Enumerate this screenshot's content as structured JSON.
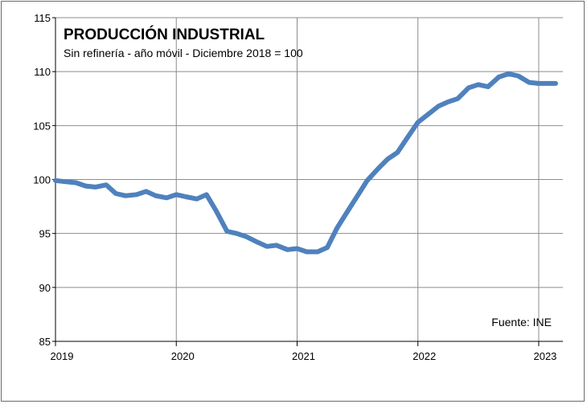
{
  "chart_data": {
    "type": "line",
    "title": "PRODUCCIÓN INDUSTRIAL",
    "subtitle": "Sin refinería - año móvil - Diciembre 2018 = 100",
    "source": "Fuente: INE",
    "xlabel": "",
    "ylabel": "",
    "ylim": [
      85,
      115
    ],
    "yticks": [
      85,
      90,
      95,
      100,
      105,
      110,
      115
    ],
    "xlim": [
      2019.0,
      2023.2
    ],
    "xticks": [
      {
        "value": 2019,
        "label": "2019"
      },
      {
        "value": 2020,
        "label": "2020"
      },
      {
        "value": 2021,
        "label": "2021"
      },
      {
        "value": 2022,
        "label": "2022"
      },
      {
        "value": 2023,
        "label": "2023"
      }
    ],
    "grid": true,
    "line_color": "#4f81bd",
    "series": [
      {
        "x": [
          2019.0,
          2019.08,
          2019.17,
          2019.25,
          2019.33,
          2019.42,
          2019.5,
          2019.58,
          2019.67,
          2019.75,
          2019.83,
          2019.92,
          2020.0,
          2020.08,
          2020.17,
          2020.25,
          2020.33,
          2020.42,
          2020.5,
          2020.58,
          2020.67,
          2020.75,
          2020.83,
          2020.92,
          2021.0,
          2021.08,
          2021.17,
          2021.25,
          2021.33,
          2021.42,
          2021.5,
          2021.58,
          2021.67,
          2021.75,
          2021.83,
          2021.92,
          2022.0,
          2022.08,
          2022.17,
          2022.25,
          2022.33,
          2022.42,
          2022.5,
          2022.58,
          2022.67,
          2022.75,
          2022.83,
          2022.92,
          2023.0,
          2023.08,
          2023.14
        ],
        "y": [
          99.9,
          99.8,
          99.7,
          99.4,
          99.3,
          99.5,
          98.7,
          98.5,
          98.6,
          98.9,
          98.5,
          98.3,
          98.6,
          98.4,
          98.2,
          98.6,
          97.1,
          95.2,
          95.0,
          94.7,
          94.2,
          93.8,
          93.9,
          93.5,
          93.6,
          93.3,
          93.3,
          93.7,
          95.5,
          97.1,
          98.5,
          99.9,
          101.0,
          101.9,
          102.5,
          104.0,
          105.3,
          106.0,
          106.8,
          107.2,
          107.5,
          108.5,
          108.8,
          108.6,
          109.5,
          109.8,
          109.6,
          109.0,
          108.9,
          108.9,
          108.9
        ]
      }
    ]
  }
}
